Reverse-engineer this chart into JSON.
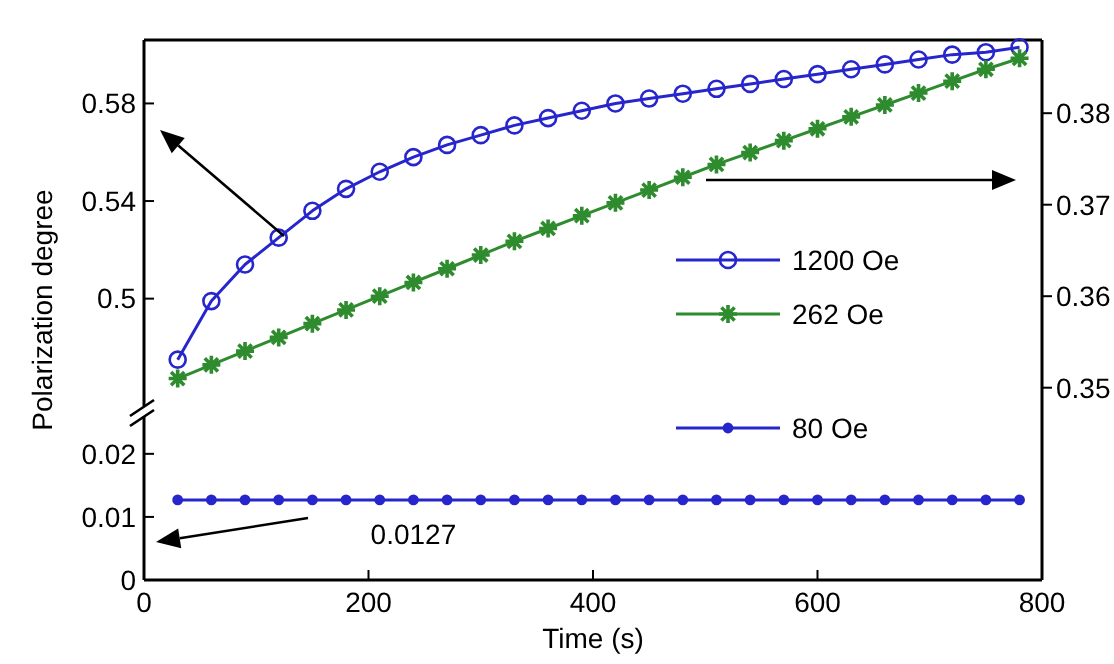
{
  "chart_data": [
    {
      "type": "line",
      "ylabel": "Polarization degree",
      "x": [
        30,
        60,
        90,
        120,
        150,
        180,
        210,
        240,
        270,
        300,
        330,
        360,
        390,
        420,
        450,
        480,
        510,
        540,
        570,
        600,
        630,
        660,
        690,
        720,
        750,
        780
      ],
      "xlim": [
        0,
        800
      ],
      "ylim": [
        0.456,
        0.606
      ],
      "yticks": [
        0.5,
        0.54,
        0.58
      ],
      "y2lim": [
        0.348,
        0.388
      ],
      "y2ticks": [
        0.35,
        0.36,
        0.37,
        0.38
      ],
      "tick_labels": "y",
      "legend": "right",
      "series": [
        {
          "name": "1200 Oe",
          "color": "#2626cc",
          "marker": "circle",
          "values": [
            0.475,
            0.499,
            0.514,
            0.525,
            0.536,
            0.545,
            0.552,
            0.558,
            0.563,
            0.567,
            0.571,
            0.574,
            0.577,
            0.58,
            0.582,
            0.584,
            0.586,
            0.588,
            0.59,
            0.592,
            0.594,
            0.596,
            0.598,
            0.6,
            0.601,
            0.603
          ]
        },
        {
          "name": "262 Oe",
          "color": "#2e8b2e",
          "marker": "cross",
          "axis": "y2",
          "values": [
            0.351,
            0.3525,
            0.354,
            0.3555,
            0.357,
            0.3585,
            0.36,
            0.3615,
            0.363,
            0.3645,
            0.366,
            0.3674,
            0.3688,
            0.3702,
            0.3716,
            0.373,
            0.3744,
            0.3757,
            0.377,
            0.3783,
            0.3796,
            0.3809,
            0.3822,
            0.3835,
            0.3848,
            0.386
          ]
        }
      ]
    },
    {
      "type": "line",
      "xlabel": "Time (s)",
      "x": [
        30,
        60,
        90,
        120,
        150,
        180,
        210,
        240,
        270,
        300,
        330,
        360,
        390,
        420,
        450,
        480,
        510,
        540,
        570,
        600,
        630,
        660,
        690,
        720,
        750,
        780
      ],
      "xlim": [
        0,
        800
      ],
      "xticks": [
        0,
        200,
        400,
        600,
        800
      ],
      "ylim": [
        0,
        0.026
      ],
      "yticks": [
        0,
        0.01,
        0.02
      ],
      "legend": "top right",
      "annotations": [
        "0.0127"
      ],
      "series": [
        {
          "name": "80 Oe",
          "color": "#2626cc",
          "marker": "circle",
          "values": [
            0.0127,
            0.0127,
            0.0127,
            0.0127,
            0.0127,
            0.0127,
            0.0127,
            0.0127,
            0.0127,
            0.0127,
            0.0127,
            0.0127,
            0.0127,
            0.0127,
            0.0127,
            0.0127,
            0.0127,
            0.0127,
            0.0127,
            0.0127,
            0.0127,
            0.0127,
            0.0127,
            0.0127,
            0.0127,
            0.0127
          ]
        }
      ]
    }
  ]
}
